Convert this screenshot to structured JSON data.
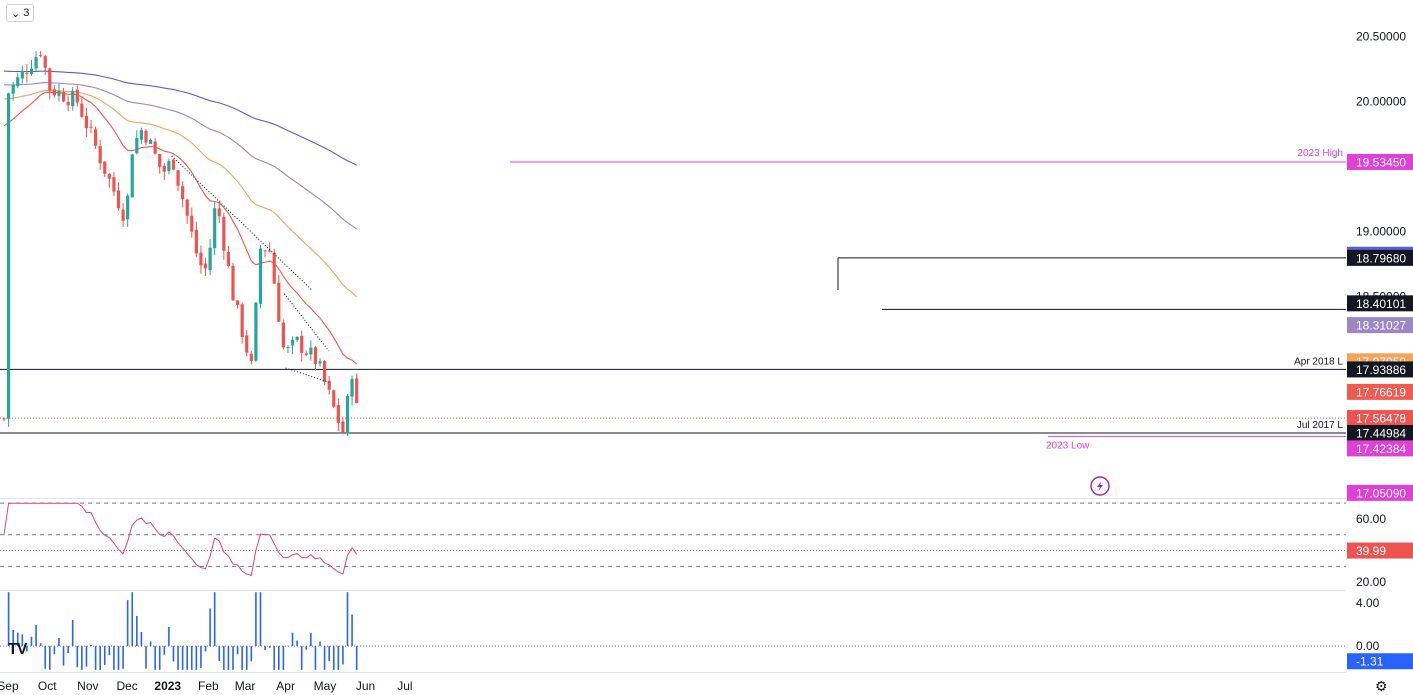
{
  "toolbar": {
    "interval_count": "3"
  },
  "icons": {
    "chevron": "chevron-down-icon",
    "logo": "tradingview-logo-icon",
    "settings": "gear-icon",
    "lightning": "lightning-icon"
  },
  "colors": {
    "up": "#26a69a",
    "down": "#ef5350",
    "ema20": "#f05a50",
    "ema50": "#f5a25a",
    "ema100": "#9c87c4",
    "ema200": "#5b5ce0",
    "magenta": "#e040d8",
    "rsi": "#e0457b",
    "volume": "#2962ff",
    "dark": "#131722"
  },
  "chart_data": {
    "type": "candlestick",
    "x_labels": [
      "Sep",
      "Oct",
      "Nov",
      "Dec",
      "2023",
      "Feb",
      "Mar",
      "Apr",
      "May",
      "Jun",
      "Jul"
    ],
    "y_ticks": [
      "20.50000",
      "20.00000",
      "19.00000",
      "18.50000"
    ],
    "price_range": [
      16.95,
      20.78
    ],
    "ohlc_keypoints": [
      {
        "date": "2022-08-31",
        "close": 20.05
      },
      {
        "date": "2022-09-26",
        "close": 20.4
      },
      {
        "date": "2022-10-03",
        "close": 20.1
      },
      {
        "date": "2022-10-24",
        "close": 20.0
      },
      {
        "date": "2022-11-15",
        "close": 19.45
      },
      {
        "date": "2022-11-30",
        "close": 19.1
      },
      {
        "date": "2022-12-05",
        "close": 19.65
      },
      {
        "date": "2022-12-13",
        "close": 19.8
      },
      {
        "date": "2022-12-28",
        "close": 19.45
      },
      {
        "date": "2023-01-05",
        "close": 19.55
      },
      {
        "date": "2023-01-25",
        "close": 18.75
      },
      {
        "date": "2023-01-31",
        "close": 18.7
      },
      {
        "date": "2023-02-07",
        "close": 19.25
      },
      {
        "date": "2023-02-20",
        "close": 18.5
      },
      {
        "date": "2023-03-06",
        "close": 17.95
      },
      {
        "date": "2023-03-13",
        "close": 18.9
      },
      {
        "date": "2023-03-20",
        "close": 18.85
      },
      {
        "date": "2023-03-31",
        "close": 18.05
      },
      {
        "date": "2023-04-10",
        "close": 18.15
      },
      {
        "date": "2023-04-25",
        "close": 18.0
      },
      {
        "date": "2023-05-09",
        "close": 17.6
      },
      {
        "date": "2023-05-15",
        "close": 17.45
      },
      {
        "date": "2023-05-22",
        "close": 17.95
      },
      {
        "date": "2023-05-26",
        "close": 17.56
      }
    ],
    "indicators": {
      "ema20_last": "17.76619",
      "ema50_last": "17.97059",
      "ema100_last": "18.31027",
      "ema200_last": "18.82072"
    },
    "horizontal_levels": [
      {
        "label": "2023 High",
        "price_label": "19.53450",
        "value": 19.5345
      },
      {
        "label": "",
        "price_label": "18.79680",
        "value": 18.7968
      },
      {
        "label": "",
        "price_label": "18.40101",
        "value": 18.40101
      },
      {
        "label": "Apr 2018 L",
        "price_label": "17.93886",
        "value": 17.93886
      },
      {
        "label": "Jul 2017 L",
        "price_label": "17.44984",
        "value": 17.44984
      },
      {
        "label": "2023 Low",
        "price_label": "17.42384",
        "value": 17.42384
      }
    ],
    "current_price_label": "17.56478",
    "lower_badge_label": "17.05090",
    "rsi": {
      "ticks": [
        "60.00",
        "20.00"
      ],
      "range": [
        15,
        72
      ],
      "upper_band": 70,
      "lower_band": 30,
      "mid": 50,
      "last_label": "39.99",
      "last": 39.99
    },
    "momentum": {
      "ticks": [
        "4.00",
        "0.00"
      ],
      "range": [
        -2.4,
        5.2
      ],
      "last_label": "-1.31",
      "last": -1.31
    }
  }
}
